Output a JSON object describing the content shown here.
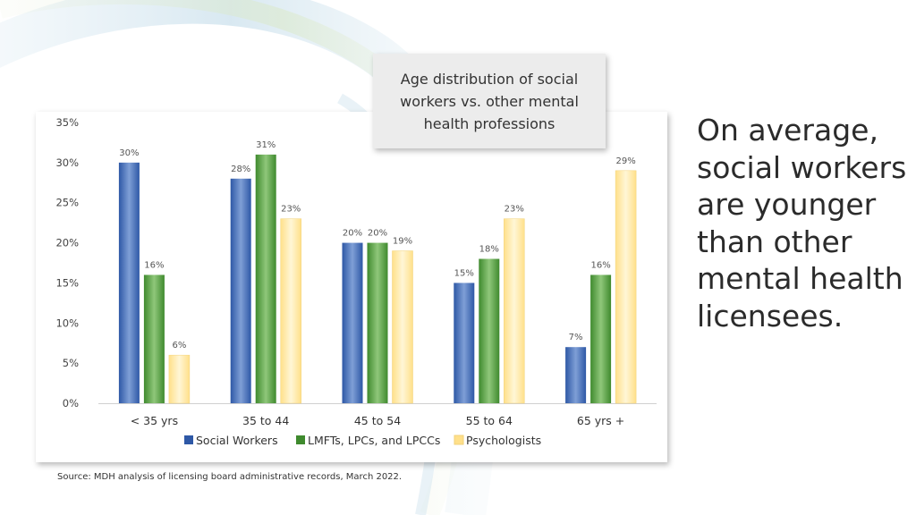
{
  "headline": "On average, social workers are younger than other mental health licensees.",
  "source": "Source: MDH analysis of licensing board administrative records, March 2022.",
  "colors": {
    "social_workers": "#2e58a6",
    "lmfts": "#3f8a2e",
    "psychologists": "#ffe08a"
  },
  "chart_data": {
    "type": "bar",
    "title": "Age distribution of social workers vs. other mental health professions",
    "categories": [
      "< 35 yrs",
      "35 to 44",
      "45 to 54",
      "55 to 64",
      "65 yrs +"
    ],
    "series": [
      {
        "name": "Social Workers",
        "values": [
          30,
          28,
          20,
          15,
          7
        ],
        "labels": [
          "30%",
          "28%",
          "20%",
          "15%",
          "7%"
        ]
      },
      {
        "name": "LMFTs, LPCs, and LPCCs",
        "values": [
          16,
          31,
          20,
          18,
          16
        ],
        "labels": [
          "16%",
          "31%",
          "20%",
          "18%",
          "16%"
        ]
      },
      {
        "name": "Psychologists",
        "values": [
          6,
          23,
          19,
          23,
          29
        ],
        "labels": [
          "6%",
          "23%",
          "19%",
          "23%",
          "29%"
        ]
      }
    ],
    "yticks": [
      "0%",
      "5%",
      "10%",
      "15%",
      "20%",
      "25%",
      "30%",
      "35%"
    ],
    "ylim": [
      0,
      35
    ],
    "grid": false,
    "legend_position": "bottom"
  }
}
